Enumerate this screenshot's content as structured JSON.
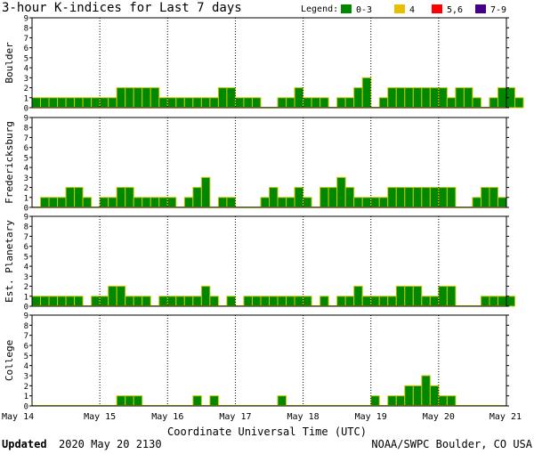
{
  "chart_data": {
    "type": "bar",
    "title": "3-hour K-indices for Last 7 days",
    "legend_title": "Legend:",
    "legend": [
      {
        "label": "0-3",
        "color": "#008800"
      },
      {
        "label": "4",
        "color": "#e8c000"
      },
      {
        "label": "5,6",
        "color": "#ff0000"
      },
      {
        "label": "7-9",
        "color": "#440088"
      }
    ],
    "bar_edge_color": "#c8c800",
    "ylim": [
      0,
      9
    ],
    "yticks": [
      "0",
      "1",
      "2",
      "3",
      "4",
      "5",
      "6",
      "7",
      "8",
      "9"
    ],
    "xlabel": "Coordinate Universal Time (UTC)",
    "x_date_labels": [
      "May 14",
      "May 15",
      "May 16",
      "May 17",
      "May 18",
      "May 19",
      "May 20",
      "May 21"
    ],
    "bins_per_day": 8,
    "panels": [
      {
        "name": "Boulder",
        "values": [
          1,
          1,
          1,
          1,
          1,
          1,
          1,
          1,
          1,
          1,
          2,
          2,
          2,
          2,
          2,
          1,
          1,
          1,
          1,
          1,
          1,
          1,
          2,
          2,
          1,
          1,
          1,
          0,
          0,
          1,
          1,
          2,
          1,
          1,
          1,
          0,
          1,
          1,
          2,
          3,
          0,
          1,
          2,
          2,
          2,
          2,
          2,
          2,
          2,
          1,
          2,
          2,
          1,
          0,
          1,
          2,
          2,
          1,
          0
        ]
      },
      {
        "name": "Fredericksburg",
        "values": [
          0,
          1,
          1,
          1,
          2,
          2,
          1,
          0,
          1,
          1,
          2,
          2,
          1,
          1,
          1,
          1,
          1,
          0,
          1,
          2,
          3,
          0,
          1,
          1,
          0,
          0,
          0,
          1,
          2,
          1,
          1,
          2,
          1,
          0,
          2,
          2,
          3,
          2,
          1,
          1,
          1,
          1,
          2,
          2,
          2,
          2,
          2,
          2,
          2,
          2,
          0,
          0,
          1,
          2,
          2,
          1,
          0
        ]
      },
      {
        "name": "Est. Planetary",
        "values": [
          1,
          1,
          1,
          1,
          1,
          1,
          0,
          1,
          1,
          2,
          2,
          1,
          1,
          1,
          0,
          1,
          1,
          1,
          1,
          1,
          2,
          1,
          0,
          1,
          0,
          1,
          1,
          1,
          1,
          1,
          1,
          1,
          1,
          0,
          1,
          0,
          1,
          1,
          2,
          1,
          1,
          1,
          1,
          2,
          2,
          2,
          1,
          1,
          2,
          2,
          0,
          0,
          0,
          1,
          1,
          1,
          1
        ]
      },
      {
        "name": "College",
        "values": [
          0,
          0,
          0,
          0,
          0,
          0,
          0,
          0,
          0,
          0,
          1,
          1,
          1,
          0,
          0,
          0,
          0,
          0,
          0,
          1,
          0,
          1,
          0,
          0,
          0,
          0,
          0,
          0,
          0,
          1,
          0,
          0,
          0,
          0,
          0,
          0,
          0,
          0,
          0,
          0,
          1,
          0,
          1,
          1,
          2,
          2,
          3,
          2,
          1,
          1,
          0,
          0,
          0,
          0,
          0,
          0
        ]
      }
    ]
  },
  "footer": {
    "updated_label": "Updated",
    "updated_value": "2020 May 20 2130",
    "source": "NOAA/SWPC Boulder, CO USA"
  }
}
